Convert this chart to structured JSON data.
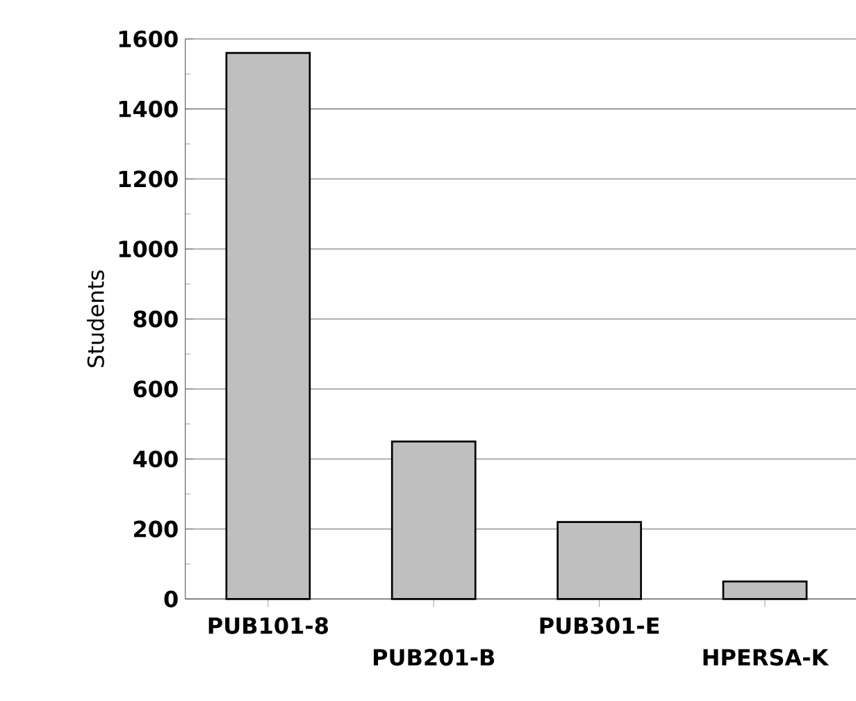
{
  "chart_data": {
    "type": "bar",
    "ylabel": "Students",
    "categories": [
      "PUB101-8",
      "PUB201-B",
      "PUB301-E",
      "HPERSA-K"
    ],
    "values": [
      1560,
      450,
      220,
      50
    ],
    "color": "#bfbfbf",
    "ylim": [
      0,
      1600
    ],
    "yticks": [
      0,
      200,
      400,
      600,
      800,
      1000,
      1200,
      1400,
      1600
    ],
    "grid": "y"
  }
}
